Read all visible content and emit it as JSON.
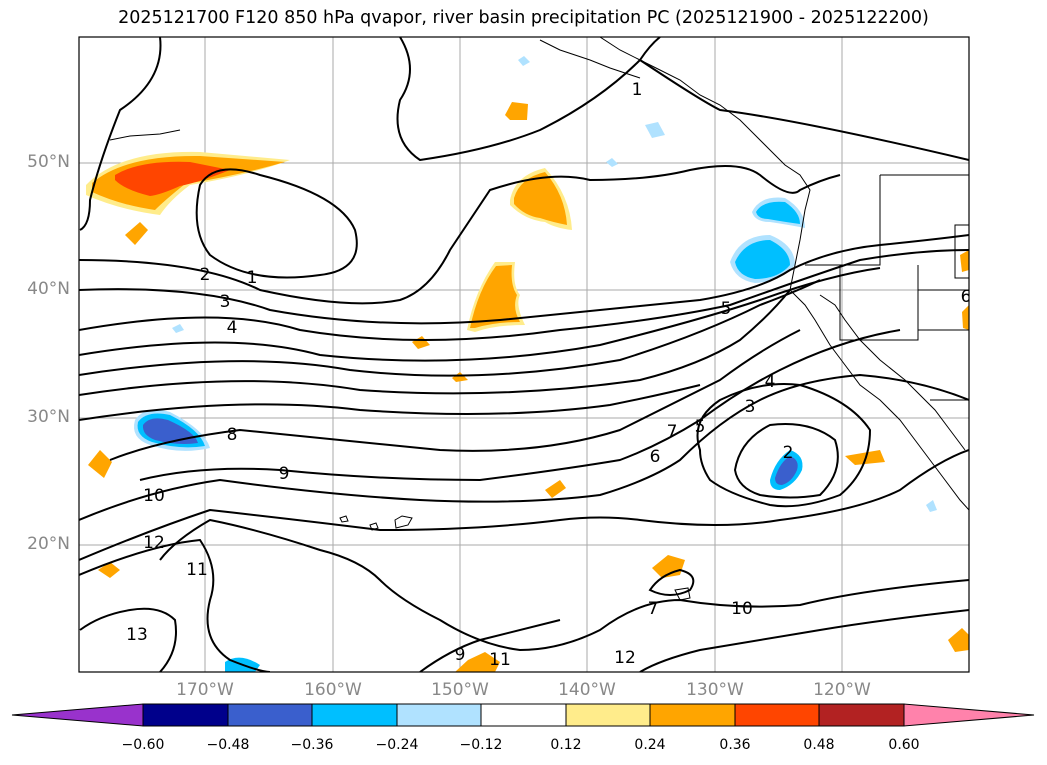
{
  "title": "2025121700 F120 850 hPa qvapor, river basin precipitation PC (2025121900 - 2025122200)",
  "map": {
    "lat_labels": [
      "50°N",
      "40°N",
      "30°N",
      "20°N"
    ],
    "lon_labels": [
      "170°W",
      "160°W",
      "150°W",
      "140°W",
      "130°W",
      "120°W"
    ],
    "contour_labels": [
      "1",
      "1",
      "2",
      "3",
      "4",
      "5",
      "8",
      "9",
      "10",
      "12",
      "11",
      "13",
      "9",
      "11",
      "12",
      "10",
      "7",
      "6",
      "7",
      "5",
      "4",
      "3",
      "2",
      "6"
    ]
  },
  "colorbar": {
    "ticks": [
      "−0.60",
      "−0.48",
      "−0.36",
      "−0.24",
      "−0.12",
      "0.12",
      "0.24",
      "0.36",
      "0.48",
      "0.60"
    ],
    "colors": [
      "#9932CC",
      "#00008B",
      "#3A5FCD",
      "#00BFFF",
      "#B0E2FF",
      "#FFFFFF",
      "#FFEC8B",
      "#FFA500",
      "#FF4500",
      "#B22222",
      "#FF82AB"
    ]
  }
}
